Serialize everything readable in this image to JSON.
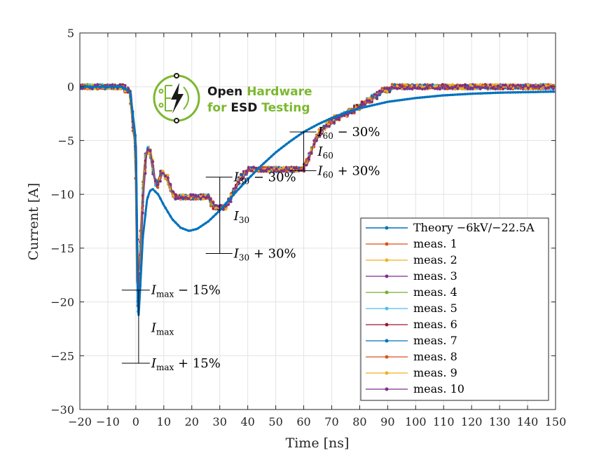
{
  "chart_data": {
    "type": "line",
    "xlabel": "Time [ns]",
    "ylabel": "Current [A]",
    "xlim": [
      -20,
      150
    ],
    "ylim": [
      -30,
      5
    ],
    "xticks": [
      -20,
      -10,
      0,
      10,
      20,
      30,
      40,
      50,
      60,
      70,
      80,
      90,
      100,
      110,
      120,
      130,
      140,
      150
    ],
    "yticks": [
      5,
      0,
      -5,
      -10,
      -15,
      -20,
      -25,
      -30
    ],
    "xtick_labels": [
      "−20",
      "−10",
      "0",
      "10",
      "20",
      "30",
      "40",
      "50",
      "60",
      "70",
      "80",
      "90",
      "100",
      "110",
      "120",
      "130",
      "140",
      "150"
    ],
    "ytick_labels": [
      "5",
      "0",
      "−5",
      "−10",
      "−15",
      "−20",
      "−25",
      "−30"
    ],
    "grid": true,
    "legend_position": "bottom-right",
    "series": [
      {
        "name": "Theory −6kV/−22.5A",
        "color": "#0072BD",
        "x": [
          -20,
          -5,
          -2,
          0,
          0.8,
          1.5,
          2.5,
          4,
          5,
          6,
          8,
          10,
          13,
          16,
          19,
          22,
          26,
          30,
          35,
          40,
          45,
          50,
          55,
          60,
          65,
          70,
          75,
          80,
          90,
          100,
          110,
          120,
          130,
          140,
          150
        ],
        "y": [
          0,
          0,
          -0.5,
          -5,
          -22.2,
          -19,
          -14,
          -10.5,
          -9.7,
          -9.5,
          -10,
          -11,
          -12.3,
          -13.1,
          -13.4,
          -13.2,
          -12.5,
          -11.5,
          -10,
          -8.6,
          -7.3,
          -6.1,
          -5.1,
          -4.2,
          -3.5,
          -2.9,
          -2.4,
          -2,
          -1.4,
          -1.05,
          -0.8,
          -0.65,
          -0.55,
          -0.5,
          -0.45
        ]
      },
      {
        "name": "meas. 1",
        "color": "#D95319"
      },
      {
        "name": "meas. 2",
        "color": "#EDB120"
      },
      {
        "name": "meas. 3",
        "color": "#7E2F8E"
      },
      {
        "name": "meas. 4",
        "color": "#77AC30"
      },
      {
        "name": "meas. 5",
        "color": "#4DBEEE"
      },
      {
        "name": "meas. 6",
        "color": "#A2142F"
      },
      {
        "name": "meas. 7",
        "color": "#0072BD"
      },
      {
        "name": "meas. 8",
        "color": "#D95319"
      },
      {
        "name": "meas. 9",
        "color": "#EDB120"
      },
      {
        "name": "meas. 10",
        "color": "#7E2F8E"
      }
    ],
    "measurement_profile": {
      "x": [
        -20,
        -5,
        -2,
        0,
        0.7,
        1.5,
        2.5,
        3.5,
        4.5,
        5.5,
        6.5,
        7.5,
        9,
        11,
        12,
        14,
        16,
        18,
        20,
        22,
        24,
        26,
        27,
        28,
        30,
        32,
        33,
        35,
        37,
        40,
        45,
        50,
        55,
        60,
        62,
        65,
        70,
        75,
        80,
        85,
        88,
        90,
        95,
        100,
        110,
        120,
        130,
        140,
        150
      ],
      "y": [
        0,
        0,
        -0.5,
        -6,
        -21,
        -16,
        -10,
        -6.5,
        -5.6,
        -6.5,
        -8.3,
        -9.3,
        -8.1,
        -8.2,
        -9.2,
        -10.4,
        -10.3,
        -10.3,
        -10.3,
        -10.3,
        -10.4,
        -10.3,
        -10.8,
        -11.2,
        -11.3,
        -11.3,
        -10.8,
        -9.7,
        -8.6,
        -7.8,
        -7.8,
        -7.8,
        -7.8,
        -7.6,
        -6.5,
        -4.5,
        -3.2,
        -2.5,
        -1.8,
        -1,
        -0.4,
        -0.2,
        0,
        0,
        0,
        0,
        0,
        0,
        0
      ]
    },
    "annotations": {
      "imax_minus": {
        "label_main": "I",
        "label_sub": "max",
        "label_rest": " − 15%",
        "y": -18.9
      },
      "imax": {
        "label_main": "I",
        "label_sub": "max",
        "label_rest": "",
        "y": -22.4
      },
      "imax_plus": {
        "label_main": "I",
        "label_sub": "max",
        "label_rest": " + 15%",
        "y": -25.7
      },
      "i30_minus": {
        "label_main": "I",
        "label_sub": "30",
        "label_rest": " − 30%",
        "y": -8.4
      },
      "i30": {
        "label_main": "I",
        "label_sub": "30",
        "label_rest": "",
        "y": -12
      },
      "i30_plus": {
        "label_main": "I",
        "label_sub": "30",
        "label_rest": " + 30%",
        "y": -15.5
      },
      "i60_minus": {
        "label_main": "I",
        "label_sub": "60",
        "label_rest": " − 30%",
        "y": -4.2
      },
      "i60": {
        "label_main": "I",
        "label_sub": "60",
        "label_rest": "",
        "y": -6
      },
      "i60_plus": {
        "label_main": "I",
        "label_sub": "60",
        "label_rest": " + 30%",
        "y": -7.8
      }
    }
  },
  "logo": {
    "line1_a": "Open",
    "line1_b": "Hardware",
    "line2_a": "for",
    "line2_b": "ESD",
    "line2_c": "Testing",
    "green": "#7CB82F",
    "dark": "#1a1a1a"
  }
}
